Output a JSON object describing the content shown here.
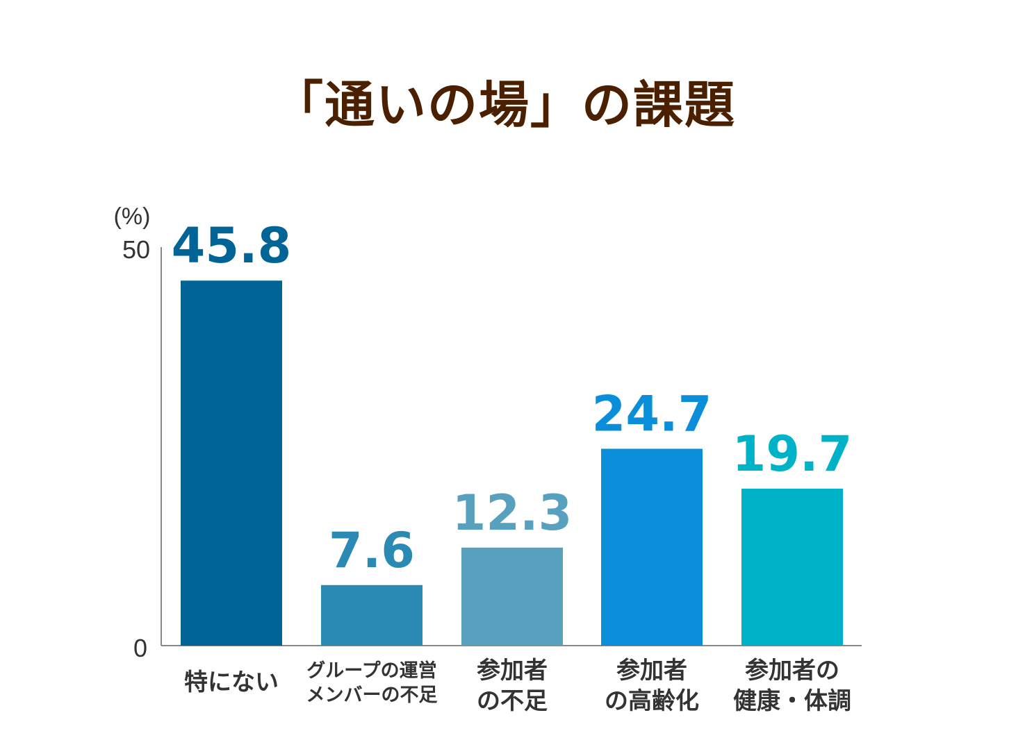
{
  "chart_data": {
    "type": "bar",
    "title": "「通いの場」の課題",
    "ylabel": "(%)",
    "ylim": [
      0,
      50
    ],
    "yticks": [
      "0",
      "50"
    ],
    "grid": false,
    "categories": [
      [
        "特にない"
      ],
      [
        "グループの運営",
        "メンバーの不足"
      ],
      [
        "参加者",
        "の不足"
      ],
      [
        "参加者",
        "の高齢化"
      ],
      [
        "参加者の",
        "健康・体調"
      ]
    ],
    "values": [
      45.8,
      7.6,
      12.3,
      24.7,
      19.7
    ],
    "value_labels": [
      "45.8",
      "7.6",
      "12.3",
      "24.7",
      "19.7"
    ],
    "colors": [
      "#006496",
      "#2b8ab3",
      "#57a0be",
      "#0a8ed9",
      "#00b2c8"
    ]
  }
}
